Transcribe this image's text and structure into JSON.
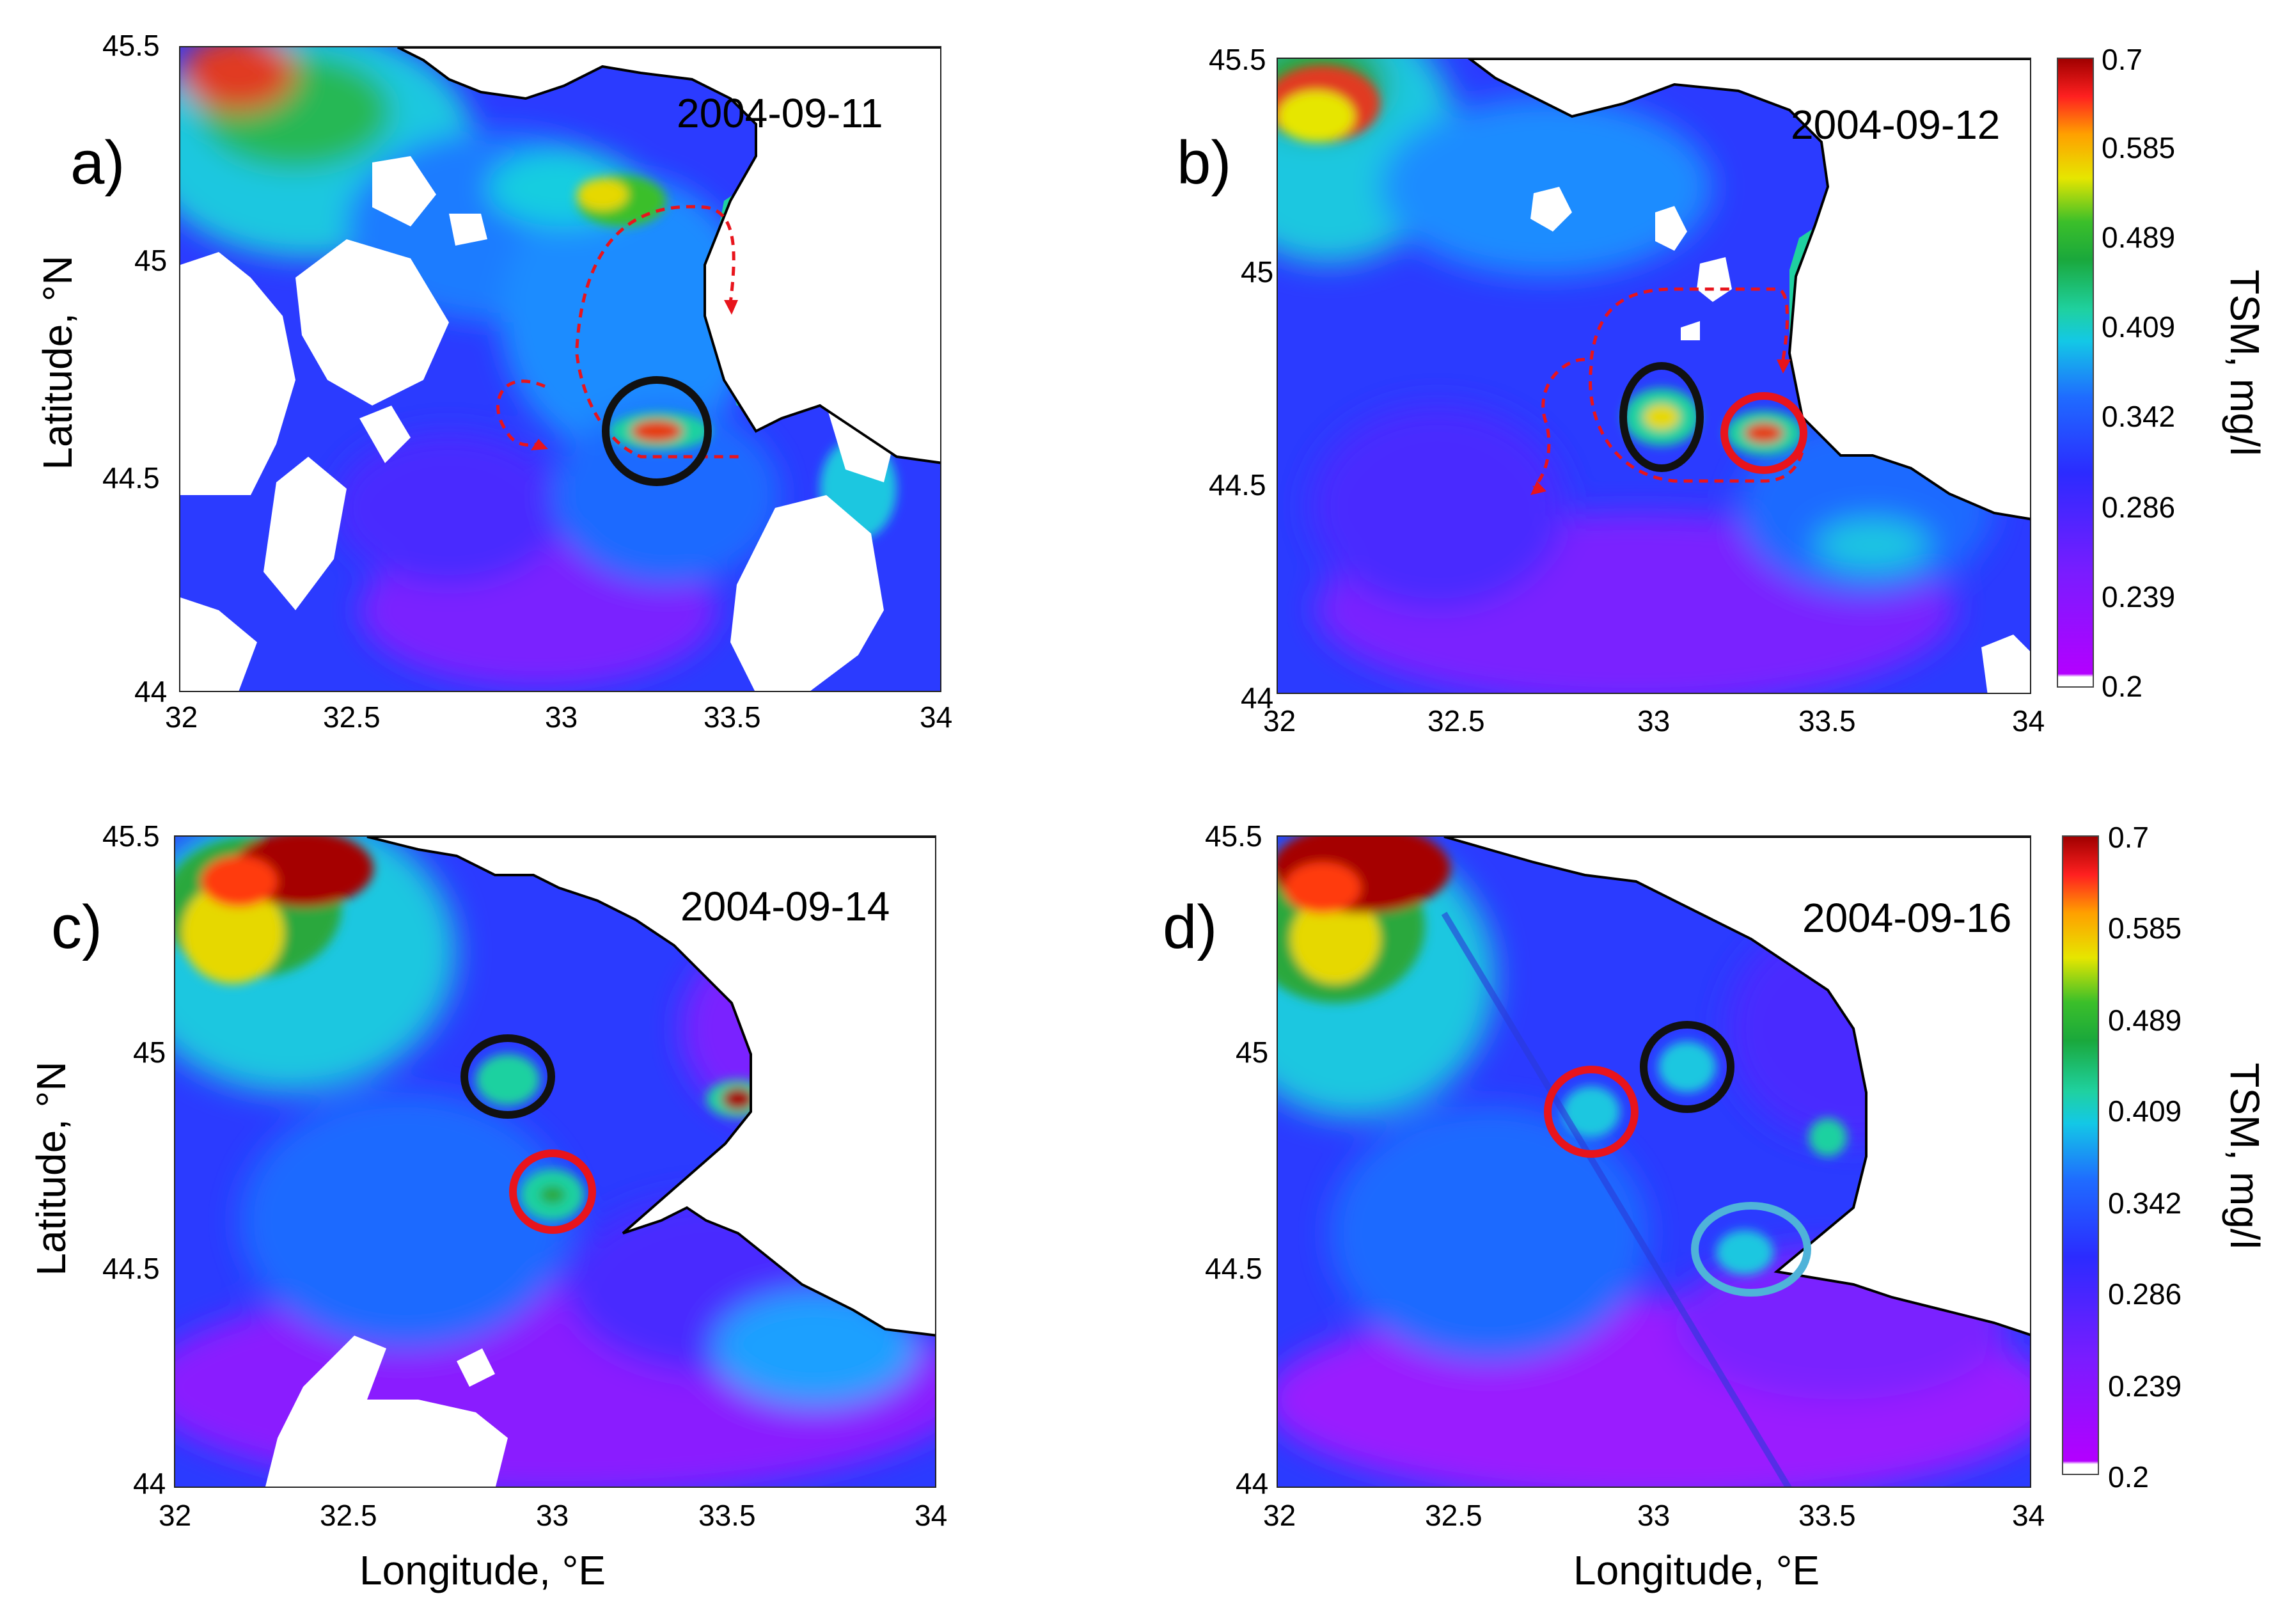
{
  "panels": [
    {
      "letter": "a)",
      "date": "2004-09-11",
      "x_ticks": [
        "32",
        "32.5",
        "33",
        "33.5",
        "34"
      ],
      "y_ticks": [
        "44",
        "44.5",
        "45",
        "45.5"
      ]
    },
    {
      "letter": "b)",
      "date": "2004-09-12",
      "x_ticks": [
        "32",
        "32.5",
        "33",
        "33.5",
        "34"
      ],
      "y_ticks": [
        "44",
        "44.5",
        "45",
        "45.5"
      ]
    },
    {
      "letter": "c)",
      "date": "2004-09-14",
      "x_ticks": [
        "32",
        "32.5",
        "33",
        "33.5",
        "34"
      ],
      "y_ticks": [
        "44",
        "44.5",
        "45",
        "45.5"
      ]
    },
    {
      "letter": "d)",
      "date": "2004-09-16",
      "x_ticks": [
        "32",
        "32.5",
        "33",
        "33.5",
        "34"
      ],
      "y_ticks": [
        "44",
        "44.5",
        "45",
        "45.5"
      ]
    }
  ],
  "axes": {
    "y_label": "Latitude, °N",
    "x_label": "Longitude, °E"
  },
  "colorbar": {
    "label": "TSM, mg/l",
    "ticks": [
      "0.7",
      "0.585",
      "0.489",
      "0.409",
      "0.342",
      "0.286",
      "0.239",
      "0.2"
    ]
  },
  "colors": {
    "circle_black": "#111111",
    "circle_red": "#e8141c",
    "circle_light_blue": "#4fb3d9",
    "arrow_red": "#e8141c",
    "coast": "#000000"
  }
}
